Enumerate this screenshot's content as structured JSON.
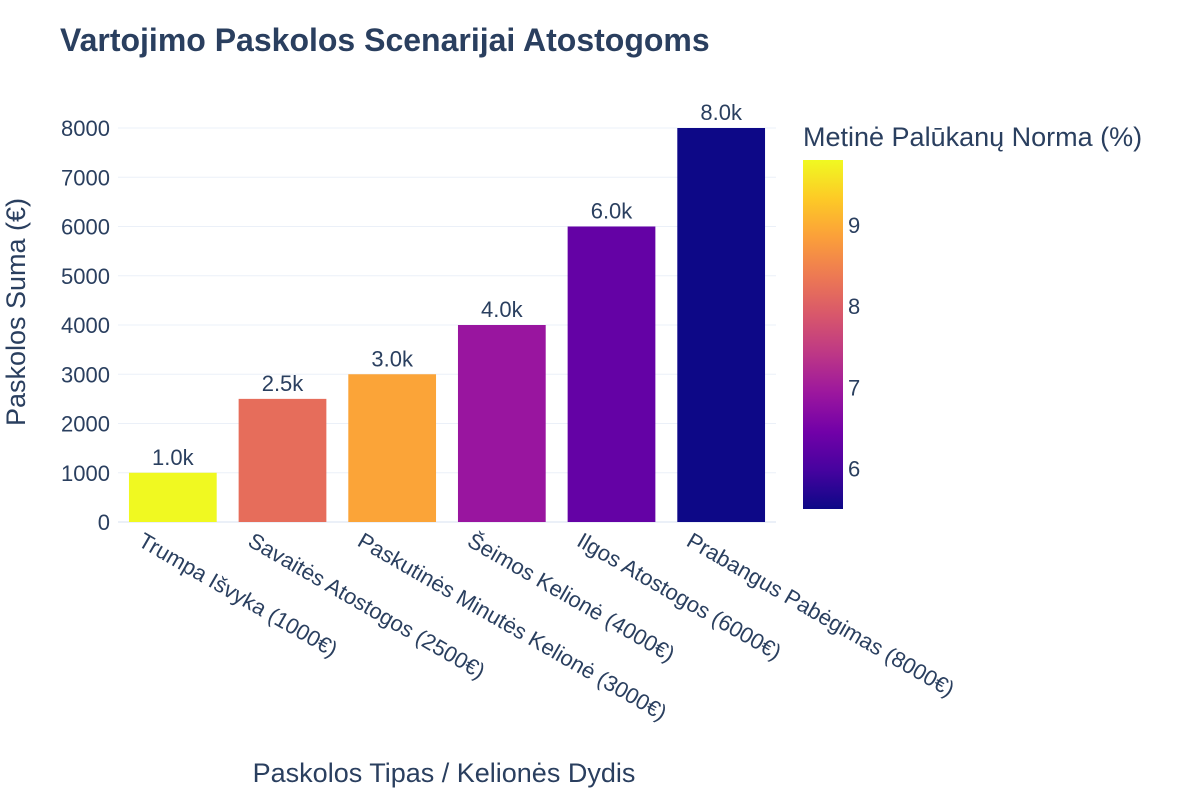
{
  "chart_data": {
    "type": "bar",
    "title": "Vartojimo Paskolos Scenarijai Atostogoms",
    "xlabel": "Paskolos Tipas / Kelionės Dydis",
    "ylabel": "Paskolos Suma (€)",
    "ylim": [
      0,
      8000
    ],
    "yticks": [
      0,
      1000,
      2000,
      3000,
      4000,
      5000,
      6000,
      7000,
      8000
    ],
    "categories": [
      "Trumpa Išvyka (1000€)",
      "Savaitės Atostogos (2500€)",
      "Paskutinės Minutės Kelionė (3000€)",
      "Šeimos Kelionė (4000€)",
      "Ilgos Atostogos (6000€)",
      "Prabangus Pabėgimas (8000€)"
    ],
    "values": [
      1000,
      2500,
      3000,
      4000,
      6000,
      8000
    ],
    "data_labels": [
      "1.0k",
      "2.5k",
      "3.0k",
      "4.0k",
      "6.0k",
      "8.0k"
    ],
    "color_values": [
      9.8,
      8.2,
      8.9,
      6.9,
      6.3,
      5.5
    ],
    "colorbar": {
      "title": "Metinė Palūkanų Norma (%)",
      "range": [
        5.5,
        9.8
      ],
      "ticks": [
        6,
        7,
        8,
        9
      ],
      "colorscale": "plasma"
    },
    "grid": true,
    "legend": "none"
  }
}
